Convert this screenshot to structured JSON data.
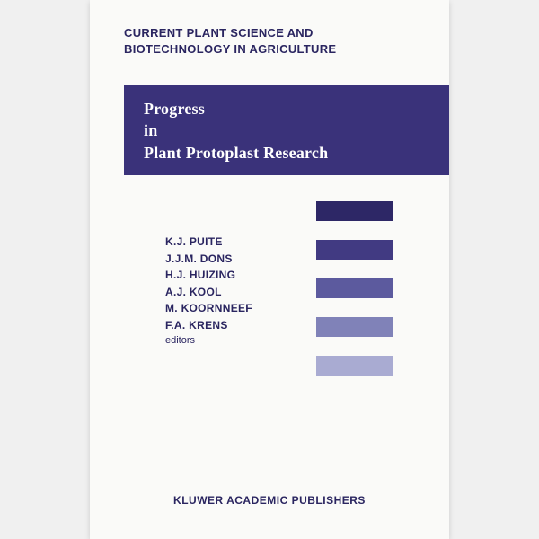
{
  "series": {
    "line1": "CURRENT PLANT SCIENCE AND",
    "line2": "BIOTECHNOLOGY IN AGRICULTURE"
  },
  "title": {
    "line1": "Progress",
    "line2": "in",
    "line3": "Plant Protoplast Research"
  },
  "title_band_color": "#3a327a",
  "editors": [
    "K.J. PUITE",
    "J.J.M. DONS",
    "H.J. HUIZING",
    "A.J. KOOL",
    "M. KOORNNEEF",
    "F.A. KRENS"
  ],
  "editors_label": "editors",
  "color_bars": [
    "#2d2766",
    "#413a82",
    "#5c5a9e",
    "#8082b8",
    "#a9abd2"
  ],
  "publisher": "KLUWER ACADEMIC PUBLISHERS",
  "background_color": "#fafaf8",
  "text_color": "#2a2560"
}
